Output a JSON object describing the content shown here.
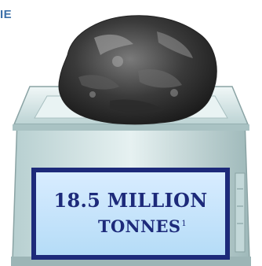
{
  "header": {
    "fragment_text": "IE"
  },
  "display": {
    "line1": "18.5 MILLION",
    "line2": "TONNES",
    "footnote_marker": "1"
  },
  "colors": {
    "panel_border": "#1d2a7a",
    "panel_fill": "#c4e4fb",
    "text": "#1d2a7a",
    "scale_body": "#cfe3e3",
    "header_text": "#3b6fa8"
  },
  "icons": {
    "rock": "rock-icon",
    "scale": "scale-icon"
  }
}
